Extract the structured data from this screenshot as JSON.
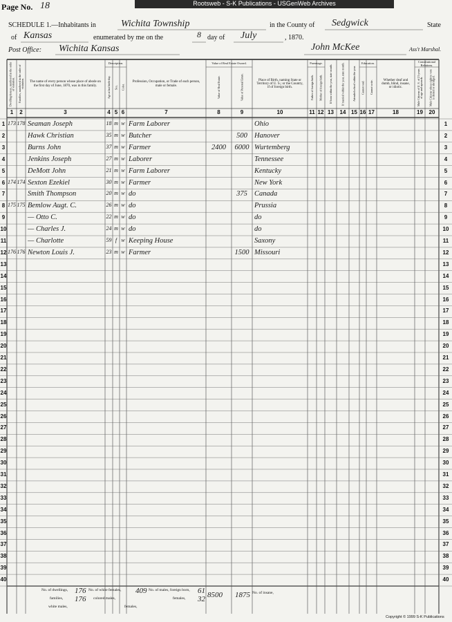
{
  "header": {
    "banner": "Rootsweb - S-K Publications - USGenWeb Archives",
    "page_label": "Page No.",
    "page_no": "18",
    "schedule": "SCHEDULE 1.—Inhabitants in",
    "township": "Wichita Township",
    "county_label": "in the County of",
    "county": "Sedgwick",
    "state_label": "State",
    "of_label": "of",
    "state": "Kansas",
    "enumerated_label": "enumerated by me on the",
    "day": "8",
    "day_of_label": "day of",
    "month": "July",
    "year_label": ", 1870.",
    "post_office_label": "Post Office:",
    "post_office": "Wichita Kansas",
    "marshal": "John McKee",
    "marshal_label": "Ass't Marshal."
  },
  "groups": [
    "Description.",
    "Value of Real Estate Owned.",
    "Parentage.",
    "Education.",
    "Constitutional Relations."
  ],
  "columns": [
    {
      "number": 1,
      "heading": "Dwelling-houses, numbered in the order of visitation."
    },
    {
      "number": 2,
      "heading": "Families, numbered in the order of visitation."
    },
    {
      "number": 3,
      "heading": "The name of every person whose place of abode on the first day of June, 1870, was in this family."
    },
    {
      "number": 4,
      "heading": "Age at last birth-day."
    },
    {
      "number": 5,
      "heading": "Sex."
    },
    {
      "number": 6,
      "heading": "Color."
    },
    {
      "number": 7,
      "heading": "Profession, Occupation, or Trade of each person, male or female."
    },
    {
      "number": 8,
      "heading": "Value of Real Estate."
    },
    {
      "number": 9,
      "heading": "Value of Personal Estate."
    },
    {
      "number": 10,
      "heading": "Place of Birth, naming State or Territory of U. S.; or the Country, if of foreign birth."
    },
    {
      "number": 11,
      "heading": "Father of foreign birth."
    },
    {
      "number": 12,
      "heading": "Mother of foreign birth."
    },
    {
      "number": 13,
      "heading": "If born within the year, state month."
    },
    {
      "number": 14,
      "heading": "If married within the year, state month."
    },
    {
      "number": 15,
      "heading": "Attended school within the year."
    },
    {
      "number": 16,
      "heading": "Cannot read."
    },
    {
      "number": 17,
      "heading": "Cannot write."
    },
    {
      "number": 18,
      "heading": "Whether deaf and dumb, blind, insane, or idiotic."
    },
    {
      "number": 19,
      "heading": "Male Citizens of U. S. of 21 years of age and upwards."
    },
    {
      "number": 20,
      "heading": "Male Citizens whose right to vote is denied or abridged."
    }
  ],
  "rows": [
    {
      "n": 1,
      "dwelling": 173,
      "family": 178,
      "name": "Seaman Joseph",
      "age": 18,
      "sex": "m",
      "color": "w",
      "occupation": "Farm Laborer",
      "birthplace": "Ohio"
    },
    {
      "n": 2,
      "name": "Hawk Christian",
      "age": 35,
      "sex": "m",
      "color": "w",
      "occupation": "Butcher",
      "personal_estate": 500,
      "birthplace": "Hanover"
    },
    {
      "n": 3,
      "name": "Burns John",
      "age": 37,
      "sex": "m",
      "color": "w",
      "occupation": "Farmer",
      "real_estate": 2400,
      "personal_estate": 6000,
      "birthplace": "Wurtemberg"
    },
    {
      "n": 4,
      "name": "Jenkins Joseph",
      "age": 27,
      "sex": "m",
      "color": "w",
      "occupation": "Laborer",
      "birthplace": "Tennessee"
    },
    {
      "n": 5,
      "name": "DeMott John",
      "age": 21,
      "sex": "m",
      "color": "w",
      "occupation": "Farm Laborer",
      "birthplace": "Kentucky"
    },
    {
      "n": 6,
      "dwelling": 174,
      "family": 174,
      "name": "Sexton Ezekiel",
      "age": 30,
      "sex": "m",
      "color": "w",
      "occupation": "Farmer",
      "birthplace": "New York"
    },
    {
      "n": 7,
      "name": "Smith Thompson",
      "age": 20,
      "sex": "m",
      "color": "w",
      "occupation": "do",
      "personal_estate": 375,
      "birthplace": "Canada"
    },
    {
      "n": 8,
      "dwelling": 175,
      "family": 175,
      "name": "Bemlow Augt. C.",
      "age": 26,
      "sex": "m",
      "color": "w",
      "occupation": "do",
      "birthplace": "Prussia"
    },
    {
      "n": 9,
      "name": "— Otto C.",
      "age": 22,
      "sex": "m",
      "color": "w",
      "occupation": "do",
      "birthplace": "do"
    },
    {
      "n": 10,
      "name": "— Charles J.",
      "age": 24,
      "sex": "m",
      "color": "w",
      "occupation": "do",
      "birthplace": "do"
    },
    {
      "n": 11,
      "name": "— Charlotte",
      "age": 59,
      "sex": "f",
      "color": "w",
      "occupation": "Keeping House",
      "birthplace": "Saxony"
    },
    {
      "n": 12,
      "dwelling": 176,
      "family": 176,
      "name": "Newton Louis J.",
      "age": 23,
      "sex": "m",
      "color": "w",
      "occupation": "Farmer",
      "personal_estate": 1500,
      "birthplace": "Missouri"
    },
    {
      "n": 13
    },
    {
      "n": 14
    },
    {
      "n": 15
    },
    {
      "n": 16
    },
    {
      "n": 17
    },
    {
      "n": 18
    },
    {
      "n": 19
    },
    {
      "n": 20
    },
    {
      "n": 21
    },
    {
      "n": 22
    },
    {
      "n": 23
    },
    {
      "n": 24
    },
    {
      "n": 25
    },
    {
      "n": 26
    },
    {
      "n": 27
    },
    {
      "n": 28
    },
    {
      "n": 29
    },
    {
      "n": 30
    },
    {
      "n": 31
    },
    {
      "n": 32
    },
    {
      "n": 33
    },
    {
      "n": 34
    },
    {
      "n": 35
    },
    {
      "n": 36
    },
    {
      "n": 37
    },
    {
      "n": 38
    },
    {
      "n": 39
    },
    {
      "n": 40
    }
  ],
  "footer": {
    "dwellings_label": "No. of dwellings,",
    "dwellings": 176,
    "families_label": "families,",
    "families": 176,
    "white_males_label": "white males,",
    "white_females_label": "No. of white females,",
    "white_females": 409,
    "colored_males_label": "colored males,",
    "colored_females_label": "females,",
    "foreign_males_label": "No. of males, foreign born,",
    "foreign_males": 61,
    "foreign_females_label": "females,",
    "foreign_females": 32,
    "real_estate_total": 8500,
    "personal_estate_total": 1875,
    "insane_label": "No. of insane,",
    "copyright": "Copyright © 1999 S-K Publications"
  }
}
